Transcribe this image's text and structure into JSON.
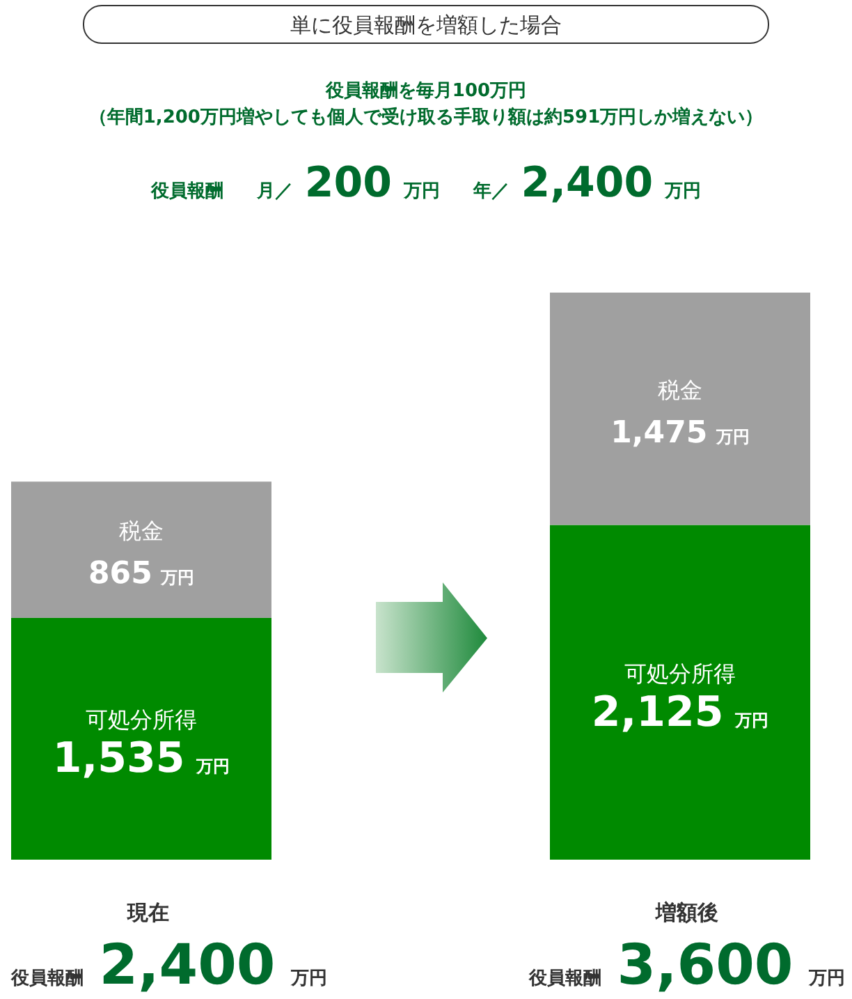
{
  "chart_data": {
    "type": "bar",
    "stacked": true,
    "title": "単に役員報酬を増額した場合",
    "subtitle": [
      "役員報酬を毎月100万円",
      "（年間1,200万円増やしても個人で受け取る手取り額は約591万円しか増えない）"
    ],
    "annotations": [
      "役員報酬　月／ 200 万円　年／ 2,400 万円"
    ],
    "categories": [
      "現在",
      "増額後"
    ],
    "series": [
      {
        "name": "可処分所得",
        "color": "#008a00",
        "values": [
          1535,
          2125
        ],
        "value_labels": [
          "1,535 万円",
          "2,125 万円"
        ]
      },
      {
        "name": "税金",
        "color": "#a0a0a0",
        "values": [
          865,
          1475
        ],
        "value_labels": [
          "865 万円",
          "1,475 万円"
        ]
      }
    ],
    "totals": [
      "役員報酬 2,400 万円",
      "役員報酬 3,600 万円"
    ]
  }
}
